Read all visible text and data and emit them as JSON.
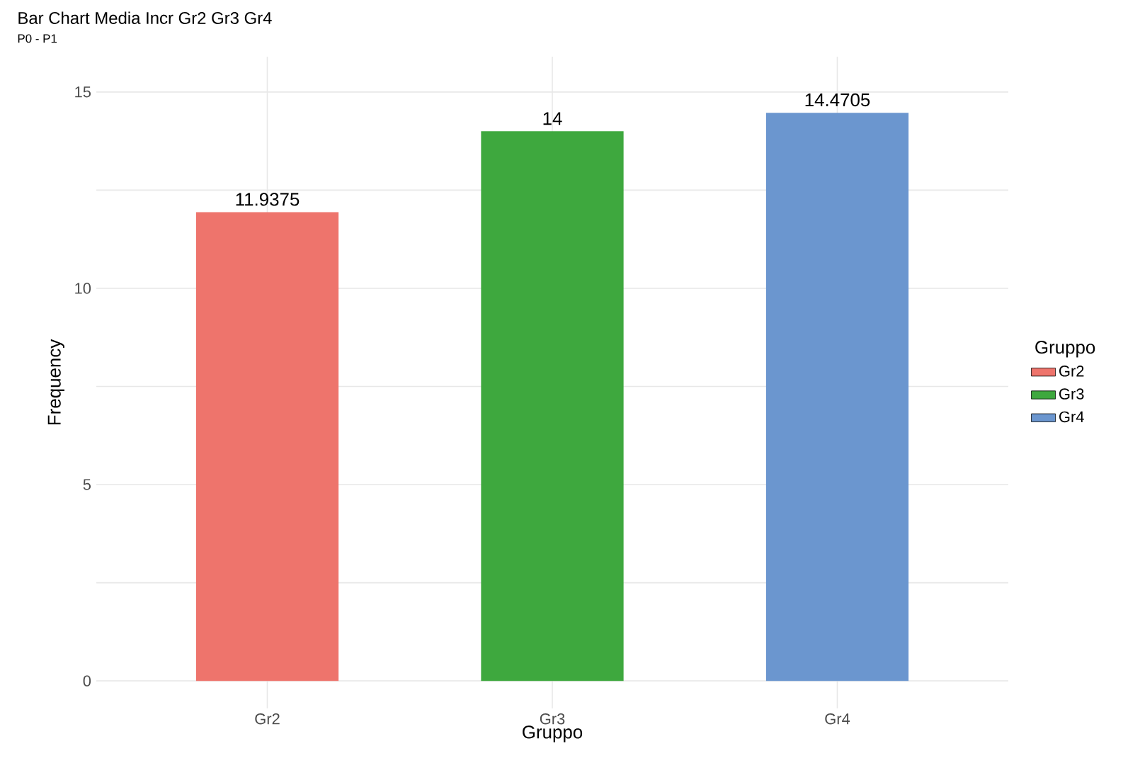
{
  "chart_data": {
    "type": "bar",
    "title": "Bar Chart Media Incr Gr2 Gr3 Gr4",
    "subtitle": "P0 - P1",
    "xlabel": "Gruppo",
    "ylabel": "Frequency",
    "legend_title": "Gruppo",
    "categories": [
      "Gr2",
      "Gr3",
      "Gr4"
    ],
    "series": [
      {
        "name": "Gr2",
        "color": "#ee746c",
        "values": [
          11.9375,
          null,
          null
        ]
      },
      {
        "name": "Gr3",
        "color": "#3ea83e",
        "values": [
          null,
          14,
          null
        ]
      },
      {
        "name": "Gr4",
        "color": "#6b96cf",
        "values": [
          null,
          null,
          14.4705
        ]
      }
    ],
    "ylim": [
      -0.7,
      15.9
    ],
    "yticks": [
      0,
      {
        "value": 2.5,
        "label": null
      },
      5,
      {
        "value": 7.5,
        "label": null
      },
      10,
      {
        "value": 12.5,
        "label": null
      },
      15
    ],
    "grid": true,
    "legend": "right",
    "data_labels": true
  }
}
